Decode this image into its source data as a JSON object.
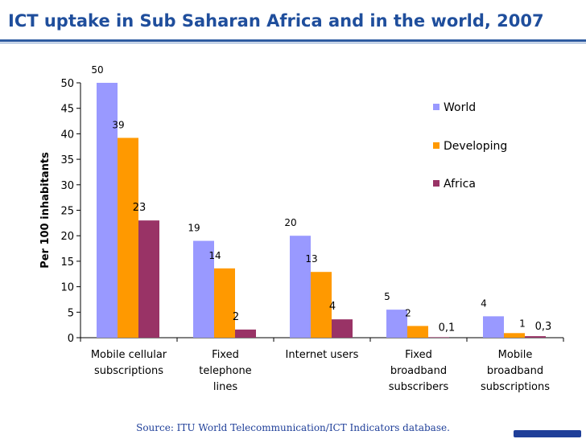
{
  "title": "ICT uptake in Sub Saharan Africa and in the world, 2007",
  "source": "Source: ITU World Telecommunication/ICT Indicators database.",
  "colors": {
    "title": "#1f4e9c",
    "World": "#9999ff",
    "Developing": "#ff9900",
    "Africa": "#993366"
  },
  "chart_data": {
    "type": "bar",
    "ylabel": "Per 100 inhabitants",
    "ylim": [
      0,
      50
    ],
    "yticks": [
      "0",
      "5",
      "10",
      "15",
      "20",
      "25",
      "30",
      "35",
      "40",
      "45",
      "50"
    ],
    "categories": [
      [
        "Mobile cellular",
        "subscriptions"
      ],
      [
        "Fixed",
        "telephone",
        "lines"
      ],
      [
        "Internet users"
      ],
      [
        "Fixed",
        "broadband",
        "subscribers"
      ],
      [
        "Mobile",
        "broadband",
        "subscriptions"
      ]
    ],
    "legend_position": "right",
    "grid": false,
    "series": [
      {
        "name": "World",
        "values": [
          50,
          19,
          20,
          5.5,
          4.2
        ],
        "labels": [
          "50",
          "19",
          "20",
          "5",
          "4"
        ]
      },
      {
        "name": "Developing",
        "values": [
          39.2,
          13.6,
          12.9,
          2.3,
          0.9
        ],
        "labels": [
          "39",
          "14",
          "13",
          "2",
          "1"
        ]
      },
      {
        "name": "Africa",
        "values": [
          23,
          1.6,
          3.6,
          0.1,
          0.3
        ],
        "labels": [
          "23",
          "2",
          "4",
          "0,1",
          "0,3"
        ]
      }
    ]
  }
}
